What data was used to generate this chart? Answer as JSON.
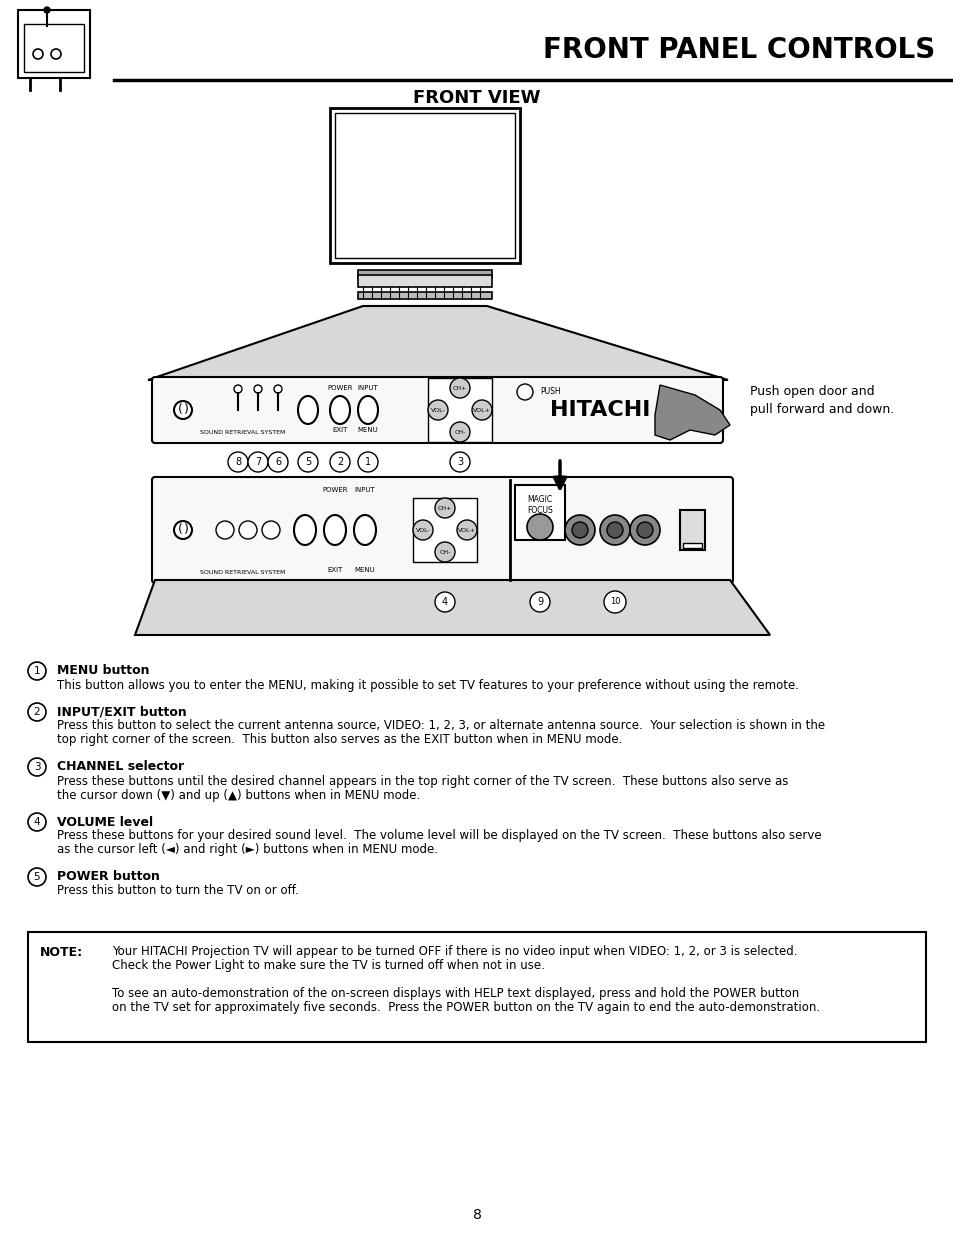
{
  "title": "FRONT PANEL CONTROLS",
  "subtitle": "FRONT VIEW",
  "page_number": "8",
  "bg_color": "#ffffff",
  "text_color": "#000000",
  "title_fontsize": 20,
  "subtitle_fontsize": 13,
  "body_fontsize": 9.0,
  "items": [
    {
      "num": "1",
      "header": "MENU button",
      "body": "This button allows you to enter the MENU, making it possible to set TV features to your preference without using the remote."
    },
    {
      "num": "2",
      "header": "INPUT/EXIT button",
      "body": "Press this button to select the current antenna source, VIDEO: 1, 2, 3, or alternate antenna source.  Your selection is shown in the\ntop right corner of the screen.  This button also serves as the EXIT button when in MENU mode."
    },
    {
      "num": "3",
      "header": "CHANNEL selector",
      "body": "Press these buttons until the desired channel appears in the top right corner of the TV screen.  These buttons also serve as\nthe cursor down (▼) and up (▲) buttons when in MENU mode."
    },
    {
      "num": "4",
      "header": "VOLUME level",
      "body": "Press these buttons for your desired sound level.  The volume level will be displayed on the TV screen.  These buttons also serve\nas the cursor left (◄) and right (►) buttons when in MENU mode."
    },
    {
      "num": "5",
      "header": "POWER button",
      "body": "Press this button to turn the TV on or off."
    }
  ],
  "note_label": "NOTE:",
  "note_text1": "Your HITACHI Projection TV will appear to be turned OFF if there is no video input when VIDEO: 1, 2, or 3 is selected.\nCheck the Power Light to make sure the TV is turned off when not in use.",
  "note_text2": "To see an auto-demonstration of the on-screen displays with HELP text displayed, press and hold the POWER button\non the TV set for approximately five seconds.  Press the POWER button on the TV again to end the auto-demonstration.",
  "push_label": "Push open door and\npull forward and down."
}
